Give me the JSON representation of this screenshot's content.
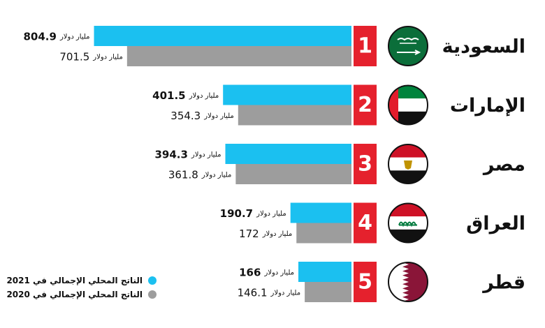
{
  "chart_data": {
    "type": "bar",
    "unit": "مليار دولار",
    "colors": {
      "current": "#1bc0f0",
      "previous": "#9d9d9d",
      "rank_box": "#e5212d"
    },
    "series": [
      {
        "name": "الناتج المحلي الإجمالي في 2021",
        "key": "current"
      },
      {
        "name": "الناتج المحلي الإجمالي في 2020",
        "key": "previous"
      }
    ],
    "rows": [
      {
        "rank": "1",
        "country": "السعودية",
        "flag": "saudi-flag-icon",
        "current": 804.9,
        "current_label": "804.9",
        "previous": 701.5,
        "previous_label": "701.5"
      },
      {
        "rank": "2",
        "country": "الإمارات",
        "flag": "uae-flag-icon",
        "current": 401.5,
        "current_label": "401.5",
        "previous": 354.3,
        "previous_label": "354.3"
      },
      {
        "rank": "3",
        "country": "مصر",
        "flag": "egypt-flag-icon",
        "current": 394.3,
        "current_label": "394.3",
        "previous": 361.8,
        "previous_label": "361.8"
      },
      {
        "rank": "4",
        "country": "العراق",
        "flag": "iraq-flag-icon",
        "current": 190.7,
        "current_label": "190.7",
        "previous": 172,
        "previous_label": "172"
      },
      {
        "rank": "5",
        "country": "قطر",
        "flag": "qatar-flag-icon",
        "current": 166,
        "current_label": "166",
        "previous": 146.1,
        "previous_label": "146.1"
      }
    ]
  },
  "legend": {
    "current_label": "الناتج المحلي الإجمالي في 2021",
    "previous_label": "الناتج المحلي الإجمالي في 2020"
  }
}
